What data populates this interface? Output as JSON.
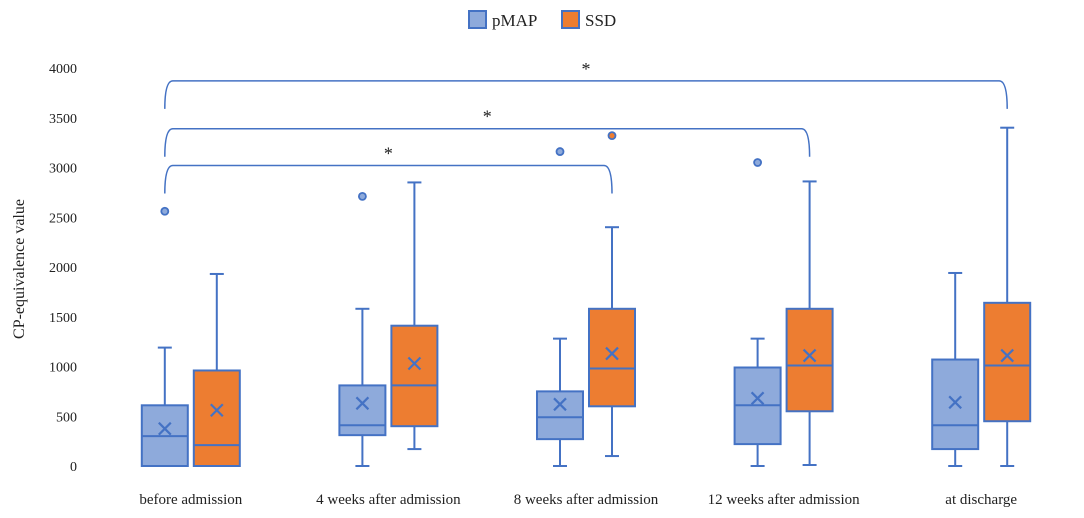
{
  "chart_data": {
    "type": "boxplot",
    "title": "",
    "xlabel": "",
    "ylabel": "CP-equivalence value",
    "ylim": [
      0,
      4000
    ],
    "yticks": [
      0,
      500,
      1000,
      1500,
      2000,
      2500,
      3000,
      3500,
      4000
    ],
    "grid": false,
    "legend_position": "top-center",
    "categories": [
      "before admission",
      "4 weeks after admission",
      "8 weeks after admission",
      "12 weeks after admission",
      "at discharge"
    ],
    "series": [
      {
        "name": "pMAP",
        "color": "#8EAADB",
        "edge": "#4472C4",
        "boxes": [
          {
            "min": 0,
            "q1": 0,
            "median": 300,
            "q3": 610,
            "max": 1190,
            "mean": 375,
            "outliers": [
              2560
            ]
          },
          {
            "min": 0,
            "q1": 310,
            "median": 410,
            "q3": 810,
            "max": 1580,
            "mean": 630,
            "outliers": [
              2710
            ]
          },
          {
            "min": 0,
            "q1": 270,
            "median": 490,
            "q3": 750,
            "max": 1280,
            "mean": 620,
            "outliers": [
              3160
            ]
          },
          {
            "min": 0,
            "q1": 220,
            "median": 610,
            "q3": 990,
            "max": 1280,
            "mean": 680,
            "outliers": [
              3050
            ]
          },
          {
            "min": 0,
            "q1": 170,
            "median": 410,
            "q3": 1070,
            "max": 1940,
            "mean": 640,
            "outliers": []
          }
        ]
      },
      {
        "name": "SSD",
        "color": "#ED7D31",
        "edge": "#4472C4",
        "boxes": [
          {
            "min": 0,
            "q1": 0,
            "median": 210,
            "q3": 960,
            "max": 1930,
            "mean": 560,
            "outliers": []
          },
          {
            "min": 170,
            "q1": 400,
            "median": 810,
            "q3": 1410,
            "max": 2850,
            "mean": 1030,
            "outliers": []
          },
          {
            "min": 100,
            "q1": 600,
            "median": 980,
            "q3": 1580,
            "max": 2400,
            "mean": 1130,
            "outliers": [
              3320
            ]
          },
          {
            "min": 10,
            "q1": 550,
            "median": 1010,
            "q3": 1580,
            "max": 2860,
            "mean": 1110,
            "outliers": []
          },
          {
            "min": 0,
            "q1": 450,
            "median": 1010,
            "q3": 1640,
            "max": 3400,
            "mean": 1110,
            "outliers": []
          }
        ]
      }
    ],
    "annotations": [
      {
        "from_category": 0,
        "to_category": 4,
        "label": "*"
      },
      {
        "from_category": 0,
        "to_category": 3,
        "label": "*"
      },
      {
        "from_category": 0,
        "to_category": 2,
        "label": "*"
      }
    ]
  }
}
